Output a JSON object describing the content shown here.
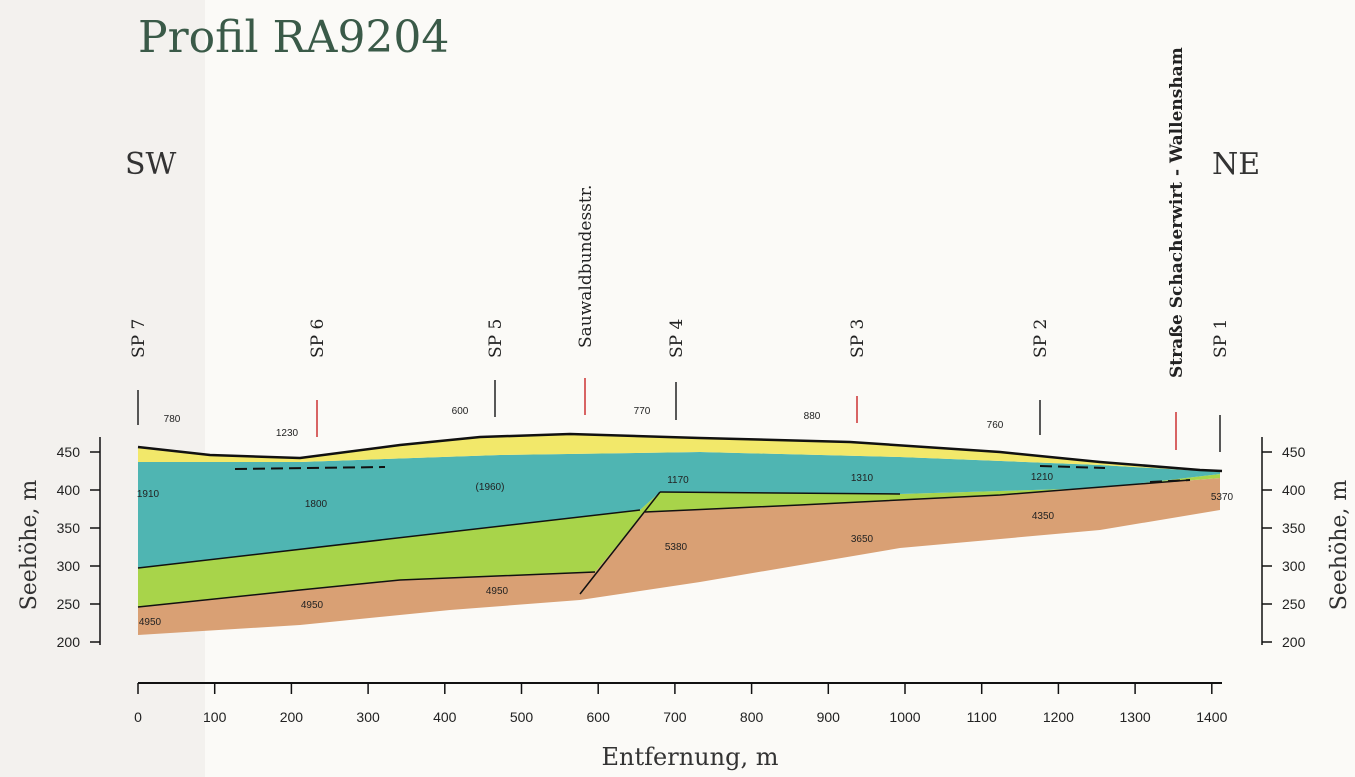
{
  "title": "Profil RA9204",
  "orientation": {
    "left": "SW",
    "right": "NE"
  },
  "markers": [
    "SP 7",
    "SP 6",
    "SP 5",
    "Sauwaldbundesstr.",
    "SP 4",
    "SP 3",
    "SP 2",
    "Straße Schacherwirt - Wallensham",
    "SP 1"
  ],
  "velocities": [
    "780",
    "1230",
    "600",
    "770",
    "880",
    "760",
    "1910",
    "1800",
    "(1960)",
    "1170",
    "1310",
    "1210",
    "5370",
    "4350",
    "3650",
    "5380",
    "4950",
    "4950",
    "4950"
  ],
  "x_axis": {
    "label": "Entfernung, m",
    "ticks": [
      0,
      100,
      200,
      300,
      400,
      500,
      600,
      700,
      800,
      900,
      1000,
      1100,
      1200,
      1300,
      1400
    ]
  },
  "y_axis": {
    "label": "Seehöhe, m",
    "ticks": [
      200,
      250,
      300,
      350,
      400,
      450
    ]
  }
}
